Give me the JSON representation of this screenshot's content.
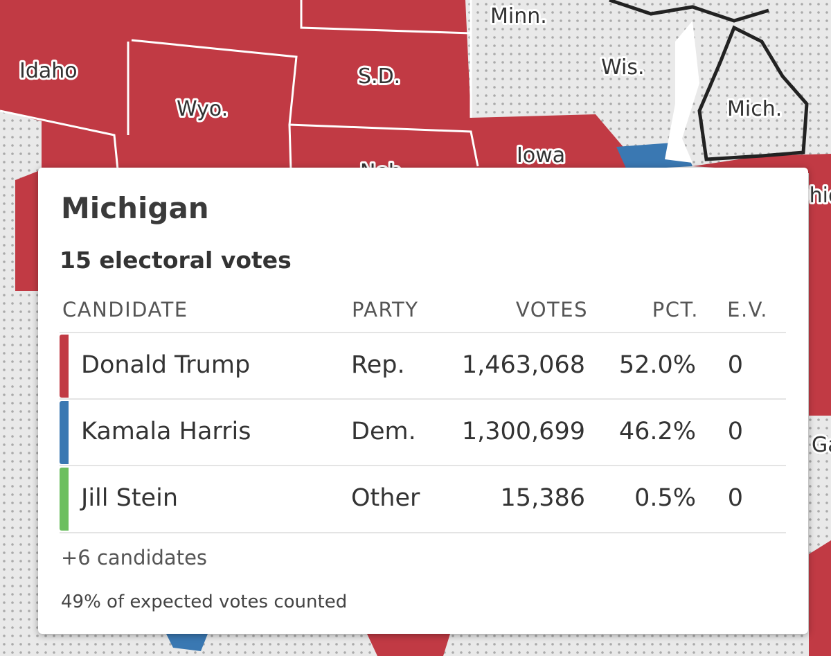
{
  "map_labels": [
    "Idaho",
    "Wyo.",
    "S.D.",
    "Minn.",
    "Wis.",
    "Mich.",
    "Iowa",
    "Neb.",
    "Ohio",
    "Ga."
  ],
  "tooltip": {
    "title": "Michigan",
    "subtitle": "15 electoral votes",
    "columns": [
      "CANDIDATE",
      "PARTY",
      "VOTES",
      "PCT.",
      "E.V."
    ],
    "rows": [
      [
        "Donald Trump",
        "Rep.",
        "1,463,068",
        "52.0%",
        "0"
      ],
      [
        "Kamala Harris",
        "Dem.",
        "1,300,699",
        "46.2%",
        "0"
      ],
      [
        "Jill Stein",
        "Other",
        "15,386",
        "0.5%",
        "0"
      ]
    ],
    "more": "+6 candidates",
    "footer": "49% of expected votes counted"
  }
}
